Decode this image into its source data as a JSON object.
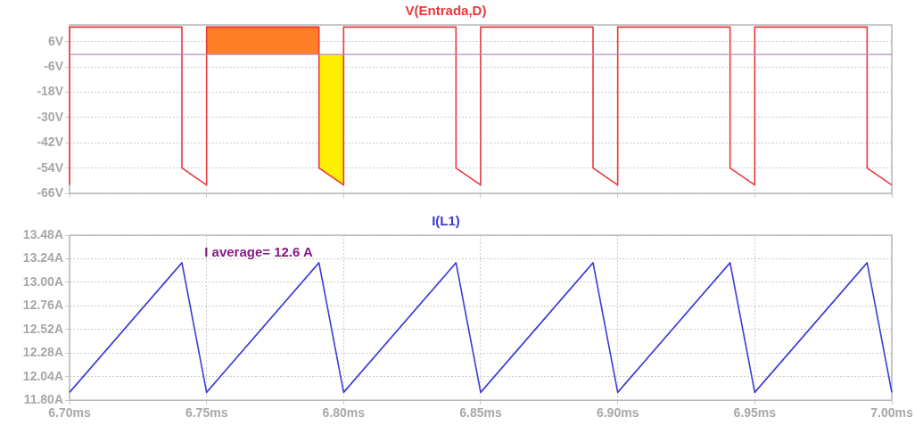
{
  "chart_data": [
    {
      "type": "line",
      "title": "V(Entrada,D)",
      "xlim": [
        6.7,
        7.0
      ],
      "xticks": [
        {
          "value": 6.7,
          "label": null
        },
        {
          "value": 6.75,
          "label": null
        },
        {
          "value": 6.8,
          "label": null
        },
        {
          "value": 6.85,
          "label": null
        },
        {
          "value": 6.9,
          "label": null
        },
        {
          "value": 6.95,
          "label": null
        },
        {
          "value": 7.0,
          "label": null
        }
      ],
      "ylim": [
        -66,
        14
      ],
      "yticks": [
        {
          "value": 6,
          "label": "6V"
        },
        {
          "value": -6,
          "label": "-6V"
        },
        {
          "value": -18,
          "label": "-18V"
        },
        {
          "value": -30,
          "label": "-30V"
        },
        {
          "value": -42,
          "label": "-42V"
        },
        {
          "value": -54,
          "label": "-54V"
        },
        {
          "value": -66,
          "label": "-66V"
        }
      ],
      "tick_labels": "y",
      "grid": true,
      "legend": false,
      "marker": "none",
      "line_style": "solid",
      "ref_lines": [
        {
          "axis": "y",
          "value": 0,
          "color": "#b98ac9"
        }
      ],
      "series": [
        {
          "type": "area",
          "color": "#ff7f27",
          "x": [
            6.75,
            6.791
          ],
          "values": [
            13,
            13
          ]
        },
        {
          "type": "area",
          "color": "#ffee00",
          "x": [
            6.791,
            6.8
          ],
          "values": [
            -54,
            -62
          ]
        },
        {
          "type": "line",
          "color": "#e8393b",
          "x": [
            6.7,
            6.7,
            6.741,
            6.741,
            6.75,
            6.75,
            6.791,
            6.791,
            6.8,
            6.8,
            6.841,
            6.841,
            6.85,
            6.85,
            6.891,
            6.891,
            6.9,
            6.9,
            6.941,
            6.941,
            6.95,
            6.95,
            6.991,
            6.991,
            7.0
          ],
          "values": [
            -62,
            13,
            13,
            -54,
            -62,
            13,
            13,
            -54,
            -62,
            13,
            13,
            -54,
            -62,
            13,
            13,
            -54,
            -62,
            13,
            13,
            -54,
            -62,
            13,
            13,
            -54,
            -62
          ]
        }
      ]
    },
    {
      "type": "line",
      "title": "I(L1)",
      "xlim": [
        6.7,
        7.0
      ],
      "xticks": [
        {
          "value": 6.7,
          "label": "6.70ms"
        },
        {
          "value": 6.75,
          "label": "6.75ms"
        },
        {
          "value": 6.8,
          "label": "6.80ms"
        },
        {
          "value": 6.85,
          "label": "6.85ms"
        },
        {
          "value": 6.9,
          "label": "6.90ms"
        },
        {
          "value": 6.95,
          "label": "6.95ms"
        },
        {
          "value": 7.0,
          "label": "7.00ms"
        }
      ],
      "ylim": [
        11.8,
        13.48
      ],
      "yticks": [
        {
          "value": 11.8,
          "label": "11.80A"
        },
        {
          "value": 12.04,
          "label": "12.04A"
        },
        {
          "value": 12.28,
          "label": "12.28A"
        },
        {
          "value": 12.52,
          "label": "12.52A"
        },
        {
          "value": 12.76,
          "label": "12.76A"
        },
        {
          "value": 13.0,
          "label": "13.00A"
        },
        {
          "value": 13.24,
          "label": "13.24A"
        },
        {
          "value": 13.48,
          "label": "13.48A"
        }
      ],
      "grid": true,
      "legend": false,
      "marker": "none",
      "line_style": "solid",
      "annotations": [
        "I average= 12.6 A"
      ],
      "series": [
        {
          "type": "line",
          "color": "#3b3bd4",
          "x": [
            6.7,
            6.741,
            6.75,
            6.791,
            6.8,
            6.841,
            6.85,
            6.891,
            6.9,
            6.941,
            6.95,
            6.991,
            7.0
          ],
          "values": [
            11.88,
            13.2,
            11.88,
            13.2,
            11.88,
            13.2,
            11.88,
            13.2,
            11.88,
            13.2,
            11.88,
            13.2,
            11.88
          ]
        }
      ]
    }
  ]
}
